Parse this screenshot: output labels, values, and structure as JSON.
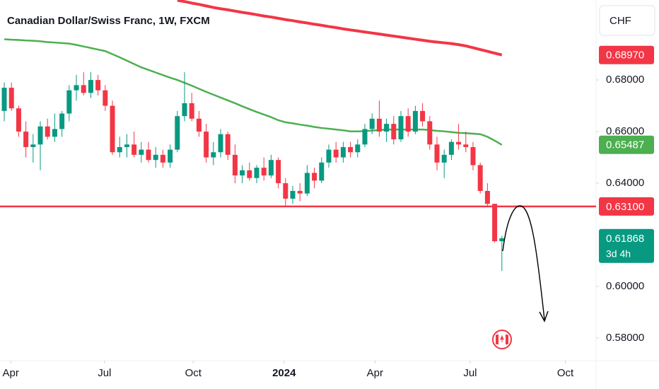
{
  "chart_data": {
    "type": "candlestick",
    "title": "Canadian Dollar/Swiss Franc, 1W, FXCM",
    "currency": "CHF",
    "up_color": "#089981",
    "down_color": "#f23645",
    "x": [
      0,
      1,
      2,
      3,
      4,
      5,
      6,
      7,
      8,
      9,
      10,
      11,
      12,
      13,
      14,
      15,
      16,
      17,
      18,
      19,
      20,
      21,
      22,
      23,
      24,
      25,
      26,
      27,
      28,
      29,
      30,
      31,
      32,
      33,
      34,
      35,
      36,
      37,
      38,
      39,
      40,
      41,
      42,
      43,
      44,
      45,
      46,
      47,
      48,
      49,
      50,
      51,
      52,
      53,
      54,
      55,
      56,
      57,
      58,
      59,
      60,
      61,
      62,
      63,
      64,
      65,
      66,
      67,
      68,
      69
    ],
    "open": [
      0.668,
      0.677,
      0.669,
      0.66,
      0.654,
      0.655,
      0.662,
      0.658,
      0.661,
      0.667,
      0.676,
      0.678,
      0.675,
      0.68,
      0.676,
      0.67,
      0.652,
      0.654,
      0.655,
      0.651,
      0.653,
      0.649,
      0.651,
      0.648,
      0.653,
      0.666,
      0.671,
      0.665,
      0.66,
      0.65,
      0.652,
      0.659,
      0.651,
      0.643,
      0.645,
      0.642,
      0.646,
      0.643,
      0.649,
      0.64,
      0.634,
      0.637,
      0.636,
      0.644,
      0.641,
      0.648,
      0.653,
      0.65,
      0.654,
      0.652,
      0.655,
      0.661,
      0.665,
      0.66,
      0.663,
      0.657,
      0.666,
      0.66,
      0.668,
      0.664,
      0.655,
      0.648,
      0.651,
      0.656,
      0.655,
      0.654,
      0.647,
      0.637,
      0.632,
      0.6175
    ],
    "high": [
      0.679,
      0.679,
      0.67,
      0.664,
      0.659,
      0.664,
      0.665,
      0.667,
      0.668,
      0.678,
      0.682,
      0.683,
      0.683,
      0.682,
      0.678,
      0.672,
      0.658,
      0.659,
      0.66,
      0.656,
      0.656,
      0.654,
      0.653,
      0.655,
      0.668,
      0.683,
      0.675,
      0.668,
      0.663,
      0.656,
      0.661,
      0.66,
      0.655,
      0.647,
      0.648,
      0.647,
      0.65,
      0.651,
      0.65,
      0.642,
      0.639,
      0.64,
      0.647,
      0.646,
      0.65,
      0.655,
      0.656,
      0.656,
      0.656,
      0.657,
      0.663,
      0.667,
      0.672,
      0.665,
      0.666,
      0.668,
      0.669,
      0.67,
      0.671,
      0.666,
      0.658,
      0.653,
      0.657,
      0.663,
      0.66,
      0.656,
      0.648,
      0.64,
      0.632,
      0.6195
    ],
    "low": [
      0.664,
      0.668,
      0.658,
      0.65,
      0.648,
      0.645,
      0.657,
      0.656,
      0.658,
      0.664,
      0.672,
      0.674,
      0.673,
      0.674,
      0.668,
      0.651,
      0.65,
      0.65,
      0.65,
      0.648,
      0.648,
      0.646,
      0.646,
      0.646,
      0.652,
      0.664,
      0.664,
      0.658,
      0.648,
      0.647,
      0.65,
      0.649,
      0.64,
      0.64,
      0.641,
      0.64,
      0.641,
      0.642,
      0.638,
      0.631,
      0.632,
      0.633,
      0.635,
      0.638,
      0.64,
      0.646,
      0.648,
      0.648,
      0.65,
      0.65,
      0.654,
      0.659,
      0.658,
      0.656,
      0.655,
      0.656,
      0.658,
      0.659,
      0.662,
      0.653,
      0.645,
      0.642,
      0.649,
      0.653,
      0.652,
      0.645,
      0.636,
      0.631,
      0.617,
      0.606
    ],
    "close": [
      0.677,
      0.669,
      0.66,
      0.654,
      0.655,
      0.662,
      0.658,
      0.661,
      0.667,
      0.676,
      0.678,
      0.675,
      0.68,
      0.676,
      0.67,
      0.652,
      0.654,
      0.655,
      0.651,
      0.653,
      0.649,
      0.651,
      0.648,
      0.653,
      0.666,
      0.671,
      0.665,
      0.66,
      0.65,
      0.652,
      0.659,
      0.651,
      0.643,
      0.645,
      0.642,
      0.646,
      0.643,
      0.649,
      0.64,
      0.634,
      0.637,
      0.636,
      0.644,
      0.641,
      0.648,
      0.653,
      0.65,
      0.654,
      0.652,
      0.655,
      0.661,
      0.665,
      0.66,
      0.663,
      0.657,
      0.666,
      0.66,
      0.668,
      0.664,
      0.655,
      0.648,
      0.651,
      0.656,
      0.655,
      0.654,
      0.647,
      0.637,
      0.632,
      0.6175,
      0.61868
    ],
    "series": [
      {
        "color": "#4caf50",
        "values": [
          0.6958,
          0.6956,
          0.6955,
          0.6953,
          0.6952,
          0.695,
          0.6947,
          0.6945,
          0.6943,
          0.6941,
          0.6936,
          0.693,
          0.6924,
          0.6918,
          0.6912,
          0.69,
          0.6888,
          0.6875,
          0.6862,
          0.6849,
          0.6839,
          0.6829,
          0.6819,
          0.6809,
          0.68,
          0.6789,
          0.6778,
          0.6766,
          0.6754,
          0.6743,
          0.6732,
          0.6721,
          0.671,
          0.6698,
          0.6687,
          0.6676,
          0.6666,
          0.6656,
          0.6644,
          0.6636,
          0.6632,
          0.6627,
          0.6623,
          0.6618,
          0.6614,
          0.6611,
          0.6608,
          0.6605,
          0.6601,
          0.6601,
          0.6602,
          0.6604,
          0.6606,
          0.6608,
          0.6608,
          0.6608,
          0.6608,
          0.6608,
          0.6608,
          0.6606,
          0.6603,
          0.6601,
          0.6598,
          0.6595,
          0.6594,
          0.6592,
          0.659,
          0.658,
          0.6565,
          0.65487
        ]
      },
      {
        "color": "#f23645",
        "values": [
          null,
          null,
          null,
          null,
          null,
          null,
          null,
          null,
          null,
          null,
          null,
          null,
          null,
          null,
          null,
          null,
          null,
          null,
          null,
          null,
          null,
          null,
          null,
          null,
          0.7109,
          0.7104,
          0.7098,
          0.7093,
          0.7087,
          0.7081,
          0.7076,
          0.7072,
          0.7067,
          0.7062,
          0.7058,
          0.7053,
          0.7048,
          0.7044,
          0.7039,
          0.7034,
          0.703,
          0.7025,
          0.7021,
          0.7016,
          0.7012,
          0.7007,
          0.7003,
          0.6998,
          0.6994,
          0.699,
          0.6986,
          0.6982,
          0.6978,
          0.6974,
          0.697,
          0.6966,
          0.6962,
          0.6958,
          0.6954,
          0.695,
          0.6947,
          0.6944,
          0.6941,
          0.6937,
          0.6932,
          0.6925,
          0.6918,
          0.6911,
          0.6904,
          0.6897
        ]
      }
    ],
    "hline": {
      "value": 0.631,
      "color": "#f23645"
    },
    "price_labels": [
      {
        "value": 0.6897,
        "label": "0.68970",
        "color": "#f23645"
      },
      {
        "value": 0.65487,
        "label": "0.65487",
        "color": "#4caf50"
      },
      {
        "value": 0.631,
        "label": "0.63100",
        "color": "#f23645"
      },
      {
        "value": 0.61868,
        "label": "0.61868",
        "sub": "3d 4h",
        "color": "#089981"
      }
    ],
    "xlim": [
      -0.59,
      82.06
    ],
    "ylim": [
      0.5712,
      0.711
    ],
    "xticks": [
      {
        "value": 0.9,
        "label": "Apr"
      },
      {
        "value": 13.9,
        "label": "Jul"
      },
      {
        "value": 26.2,
        "label": "Oct"
      },
      {
        "value": 38.8,
        "label": "2024",
        "bold": true
      },
      {
        "value": 51.4,
        "label": "Apr"
      },
      {
        "value": 64.6,
        "label": "Jul"
      },
      {
        "value": 77.8,
        "label": "Oct"
      }
    ],
    "yticks": [
      {
        "value": 0.58,
        "label": "0.58000"
      },
      {
        "value": 0.6,
        "label": "0.60000"
      },
      {
        "value": 0.64,
        "label": "0.64000"
      },
      {
        "value": 0.66,
        "label": "0.66000"
      },
      {
        "value": 0.68,
        "label": "0.68000"
      }
    ]
  }
}
